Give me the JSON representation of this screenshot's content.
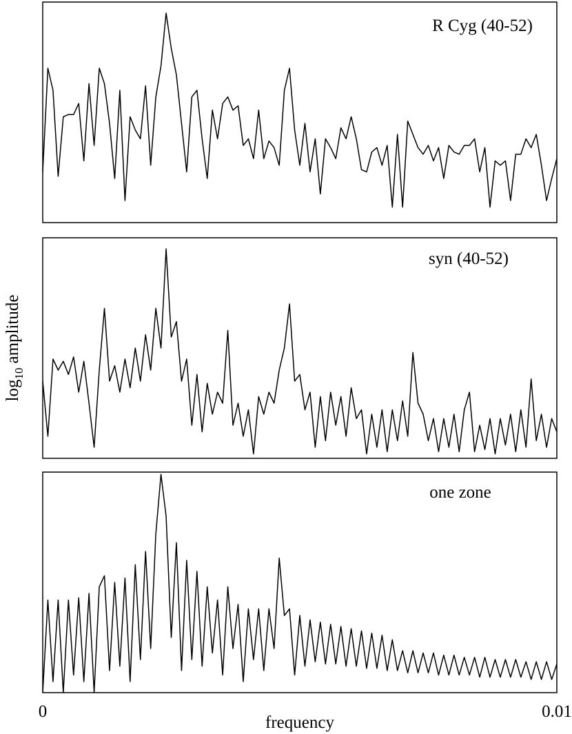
{
  "chart_data": [
    {
      "type": "line",
      "annotation": "R Cyg (40-52)",
      "xlim": [
        0,
        0.01
      ],
      "ylim": [
        0,
        100
      ],
      "color": "#000000",
      "x": [
        0,
        0.0001,
        0.0002,
        0.0003,
        0.0004,
        0.0005,
        0.0006,
        0.0007,
        0.0008,
        0.0009,
        0.001,
        0.0011,
        0.0012,
        0.0013,
        0.0014,
        0.0015,
        0.0016,
        0.0017,
        0.0018,
        0.0019,
        0.002,
        0.0021,
        0.0022,
        0.0023,
        0.0024,
        0.0025,
        0.0026,
        0.0027,
        0.0028,
        0.0029,
        0.003,
        0.0031,
        0.0032,
        0.0033,
        0.0034,
        0.0035,
        0.0036,
        0.0037,
        0.0038,
        0.0039,
        0.004,
        0.0041,
        0.0042,
        0.0043,
        0.0044,
        0.0045,
        0.0046,
        0.0047,
        0.0048,
        0.0049,
        0.005,
        0.0051,
        0.0052,
        0.0053,
        0.0054,
        0.0055,
        0.0056,
        0.0057,
        0.0058,
        0.0059,
        0.006,
        0.0061,
        0.0062,
        0.0063,
        0.0064,
        0.0065,
        0.0066,
        0.0067,
        0.0068,
        0.0069,
        0.007,
        0.0071,
        0.0072,
        0.0073,
        0.0074,
        0.0075,
        0.0076,
        0.0077,
        0.0078,
        0.0079,
        0.008,
        0.0081,
        0.0082,
        0.0083,
        0.0084,
        0.0085,
        0.0086,
        0.0087,
        0.0088,
        0.0089,
        0.009,
        0.0091,
        0.0092,
        0.0093,
        0.0094,
        0.0095,
        0.0096,
        0.0097,
        0.0098,
        0.0099,
        0.01
      ],
      "values": [
        23,
        70,
        60,
        21,
        48,
        49,
        49,
        54,
        28,
        63,
        35,
        70,
        63,
        45,
        20,
        60,
        10,
        48,
        42,
        38,
        62,
        26,
        57,
        71,
        95,
        79,
        67,
        45,
        23,
        57,
        60,
        38,
        20,
        51,
        38,
        54,
        57,
        51,
        53,
        35,
        38,
        29,
        51,
        29,
        37,
        34,
        26,
        60,
        70,
        42,
        26,
        45,
        23,
        38,
        13,
        38,
        34,
        29,
        43,
        38,
        48,
        38,
        24,
        23,
        32,
        34,
        26,
        35,
        7,
        40,
        7,
        46,
        40,
        34,
        31,
        35,
        28,
        34,
        20,
        35,
        32,
        31,
        35,
        35,
        38,
        23,
        34,
        7,
        28,
        26,
        28,
        10,
        31,
        31,
        38,
        34,
        40,
        26,
        10,
        20,
        29
      ]
    },
    {
      "type": "line",
      "annotation": "syn (40-52)",
      "xlim": [
        0,
        0.01
      ],
      "ylim": [
        0,
        100
      ],
      "color": "#000000",
      "ylabel": [
        "log",
        "10",
        "amplitude"
      ],
      "x": [
        0,
        0.0001,
        0.0002,
        0.0003,
        0.0004,
        0.0005,
        0.0006,
        0.0007,
        0.0008,
        0.0009,
        0.001,
        0.0011,
        0.0012,
        0.0013,
        0.0014,
        0.0015,
        0.0016,
        0.0017,
        0.0018,
        0.0019,
        0.002,
        0.0021,
        0.0022,
        0.0023,
        0.0024,
        0.0025,
        0.0026,
        0.0027,
        0.0028,
        0.0029,
        0.003,
        0.0031,
        0.0032,
        0.0033,
        0.0034,
        0.0035,
        0.0036,
        0.0037,
        0.0038,
        0.0039,
        0.004,
        0.0041,
        0.0042,
        0.0043,
        0.0044,
        0.0045,
        0.0046,
        0.0047,
        0.0048,
        0.0049,
        0.005,
        0.0051,
        0.0052,
        0.0053,
        0.0054,
        0.0055,
        0.0056,
        0.0057,
        0.0058,
        0.0059,
        0.006,
        0.0061,
        0.0062,
        0.0063,
        0.0064,
        0.0065,
        0.0066,
        0.0067,
        0.0068,
        0.0069,
        0.007,
        0.0071,
        0.0072,
        0.0073,
        0.0074,
        0.0075,
        0.0076,
        0.0077,
        0.0078,
        0.0079,
        0.008,
        0.0081,
        0.0082,
        0.0083,
        0.0084,
        0.0085,
        0.0086,
        0.0087,
        0.0088,
        0.0089,
        0.009,
        0.0091,
        0.0092,
        0.0093,
        0.0094,
        0.0095,
        0.0096,
        0.0097,
        0.0098,
        0.0099,
        0.01
      ],
      "values": [
        35,
        10,
        45,
        40,
        44,
        38,
        46,
        30,
        44,
        25,
        5,
        40,
        68,
        35,
        42,
        30,
        45,
        32,
        50,
        35,
        56,
        40,
        68,
        50,
        95,
        55,
        62,
        35,
        45,
        15,
        38,
        12,
        34,
        20,
        30,
        25,
        58,
        15,
        25,
        10,
        22,
        2,
        28,
        20,
        30,
        25,
        40,
        50,
        70,
        35,
        38,
        22,
        30,
        5,
        28,
        8,
        30,
        15,
        28,
        10,
        32,
        18,
        22,
        2,
        20,
        5,
        22,
        3,
        22,
        8,
        26,
        10,
        48,
        25,
        20,
        8,
        18,
        3,
        18,
        5,
        20,
        3,
        22,
        30,
        3,
        15,
        4,
        18,
        2,
        18,
        6,
        20,
        3,
        22,
        5,
        36,
        8,
        20,
        5,
        18,
        12
      ]
    },
    {
      "type": "line",
      "annotation": "one zone",
      "xlim": [
        0,
        0.01
      ],
      "ylim": [
        0,
        100
      ],
      "color": "#000000",
      "xlabel": "frequency",
      "xticks": [
        0,
        0.01
      ],
      "x": [
        0,
        0.0001,
        0.0002,
        0.0003,
        0.0004,
        0.0005,
        0.0006,
        0.0007,
        0.0008,
        0.0009,
        0.001,
        0.0011,
        0.0012,
        0.0013,
        0.0014,
        0.0015,
        0.0016,
        0.0017,
        0.0018,
        0.0019,
        0.002,
        0.0021,
        0.0022,
        0.0023,
        0.0024,
        0.0025,
        0.0026,
        0.0027,
        0.0028,
        0.0029,
        0.003,
        0.0031,
        0.0032,
        0.0033,
        0.0034,
        0.0035,
        0.0036,
        0.0037,
        0.0038,
        0.0039,
        0.004,
        0.0041,
        0.0042,
        0.0043,
        0.0044,
        0.0045,
        0.0046,
        0.0047,
        0.0048,
        0.0049,
        0.005,
        0.0051,
        0.0052,
        0.0053,
        0.0054,
        0.0055,
        0.0056,
        0.0057,
        0.0058,
        0.0059,
        0.006,
        0.0061,
        0.0062,
        0.0063,
        0.0064,
        0.0065,
        0.0066,
        0.0067,
        0.0068,
        0.0069,
        0.007,
        0.0071,
        0.0072,
        0.0073,
        0.0074,
        0.0075,
        0.0076,
        0.0077,
        0.0078,
        0.0079,
        0.008,
        0.0081,
        0.0082,
        0.0083,
        0.0084,
        0.0085,
        0.0086,
        0.0087,
        0.0088,
        0.0089,
        0.009,
        0.0091,
        0.0092,
        0.0093,
        0.0094,
        0.0095,
        0.0096,
        0.0097,
        0.0098,
        0.0099,
        0.01
      ],
      "values": [
        0,
        42,
        5,
        42,
        0,
        42,
        8,
        43,
        5,
        45,
        0,
        48,
        53,
        10,
        50,
        12,
        52,
        5,
        58,
        15,
        64,
        20,
        72,
        99,
        80,
        25,
        68,
        10,
        60,
        15,
        55,
        12,
        48,
        18,
        42,
        8,
        48,
        20,
        40,
        5,
        38,
        15,
        38,
        10,
        38,
        20,
        61,
        35,
        38,
        8,
        35,
        12,
        33,
        14,
        32,
        13,
        31,
        13,
        30,
        12,
        29,
        12,
        28,
        11,
        27,
        11,
        26,
        10,
        24,
        10,
        19,
        9,
        19,
        9,
        18,
        9,
        18,
        8,
        17,
        8,
        17,
        8,
        16,
        8,
        16,
        7,
        16,
        7,
        15,
        7,
        15,
        7,
        15,
        7,
        14,
        6,
        14,
        6,
        14,
        6,
        13
      ]
    }
  ]
}
